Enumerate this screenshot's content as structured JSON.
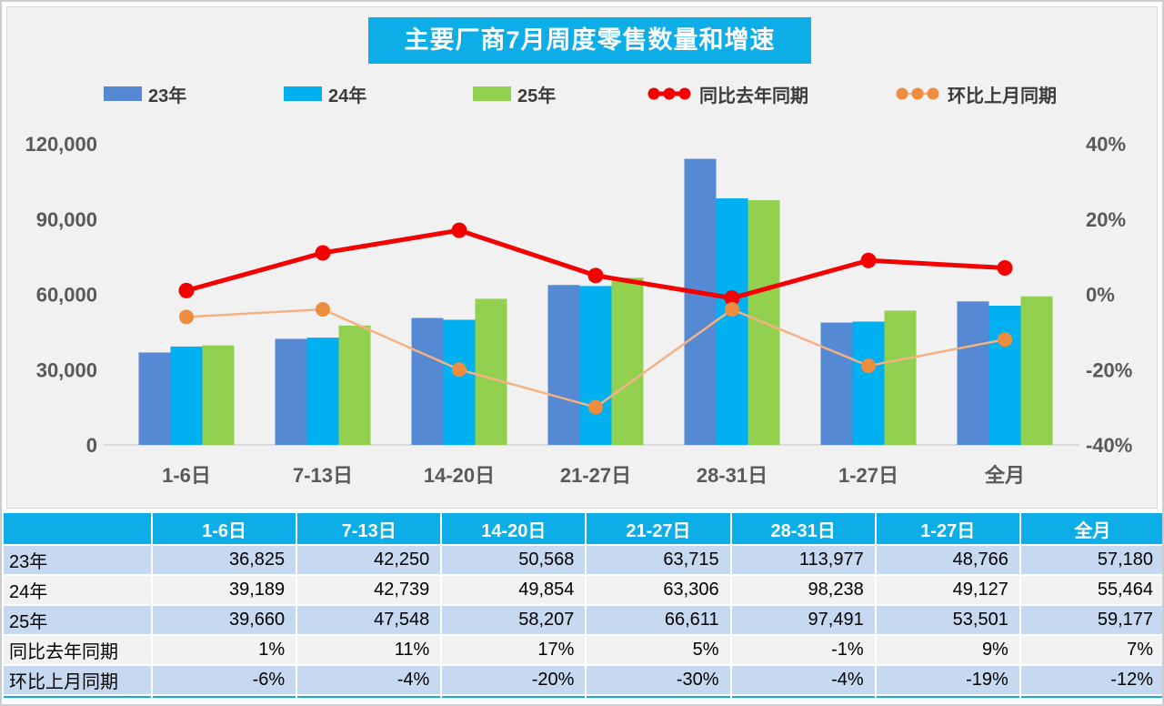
{
  "title": "主要厂商7月周度零售数量和增速",
  "colors": {
    "accent_cyan": "#0dade8",
    "bar_23": "#5589d3",
    "bar_24": "#00b0f0",
    "bar_25": "#92d050",
    "line_yoy": "#f40000",
    "line_mom": "#f5b183",
    "line_mom_marker": "#ed8d3d",
    "panel_bg": "#f1f1f1",
    "band_blue": "#c7d9f1",
    "band_gray": "#f2f2f2"
  },
  "legend": {
    "items": [
      {
        "label": "23年",
        "marker": "swatch",
        "color": "#5589d3"
      },
      {
        "label": "24年",
        "marker": "swatch",
        "color": "#00b0f0"
      },
      {
        "label": "25年",
        "marker": "swatch",
        "color": "#92d050"
      },
      {
        "label": "同比去年同期",
        "marker": "line",
        "color": "#f40000",
        "marker_color": "#f40000",
        "line_width": 5
      },
      {
        "label": "环比上月同期",
        "marker": "line",
        "color": "#f5b183",
        "marker_color": "#ed8d3d",
        "line_width": 2.5
      }
    ]
  },
  "chart_data": {
    "type": "bar+line combo",
    "title": "主要厂商7月周度零售数量和增速",
    "categories": [
      "1-6日",
      "7-13日",
      "14-20日",
      "21-27日",
      "28-31日",
      "1-27日",
      "全月"
    ],
    "bar_series": [
      {
        "name": "23年",
        "color": "#5589d3",
        "values": [
          36825,
          42250,
          50568,
          63715,
          113977,
          48766,
          57180
        ]
      },
      {
        "name": "24年",
        "color": "#00b0f0",
        "values": [
          39189,
          42739,
          49854,
          63306,
          98238,
          49127,
          55464
        ]
      },
      {
        "name": "25年",
        "color": "#92d050",
        "values": [
          39660,
          47548,
          58207,
          66611,
          97491,
          53501,
          59177
        ]
      }
    ],
    "line_series": [
      {
        "name": "同比去年同期",
        "color": "#f40000",
        "marker_color": "#f40000",
        "width": 5,
        "marker_r": 8.5,
        "values_pct": [
          1,
          11,
          17,
          5,
          -1,
          9,
          7
        ]
      },
      {
        "name": "环比上月同期",
        "color": "#f5b183",
        "marker_color": "#ed8d3d",
        "width": 2.5,
        "marker_r": 8,
        "values_pct": [
          -6,
          -4,
          -20,
          -30,
          -4,
          -19,
          -12
        ]
      }
    ],
    "left_axis": {
      "ticks": [
        "120,000",
        "90,000",
        "60,000",
        "30,000",
        "0"
      ],
      "min": 0,
      "max": 120000
    },
    "right_axis": {
      "ticks": [
        "40%",
        "20%",
        "0%",
        "-20%",
        "-40%"
      ],
      "min": -40,
      "max": 40
    },
    "gridlines": false,
    "legend_position": "top"
  },
  "table": {
    "header": [
      "1-6日",
      "7-13日",
      "14-20日",
      "21-27日",
      "28-31日",
      "1-27日",
      "全月"
    ],
    "rows": [
      {
        "label": "23年",
        "values": [
          "36,825",
          "42,250",
          "50,568",
          "63,715",
          "113,977",
          "48,766",
          "57,180"
        ]
      },
      {
        "label": "24年",
        "values": [
          "39,189",
          "42,739",
          "49,854",
          "63,306",
          "98,238",
          "49,127",
          "55,464"
        ]
      },
      {
        "label": "25年",
        "values": [
          "39,660",
          "47,548",
          "58,207",
          "66,611",
          "97,491",
          "53,501",
          "59,177"
        ]
      },
      {
        "label": "同比去年同期",
        "values": [
          "1%",
          "11%",
          "17%",
          "5%",
          "-1%",
          "9%",
          "7%"
        ]
      },
      {
        "label": "环比上月同期",
        "values": [
          "-6%",
          "-4%",
          "-20%",
          "-30%",
          "-4%",
          "-19%",
          "-12%"
        ]
      }
    ]
  }
}
